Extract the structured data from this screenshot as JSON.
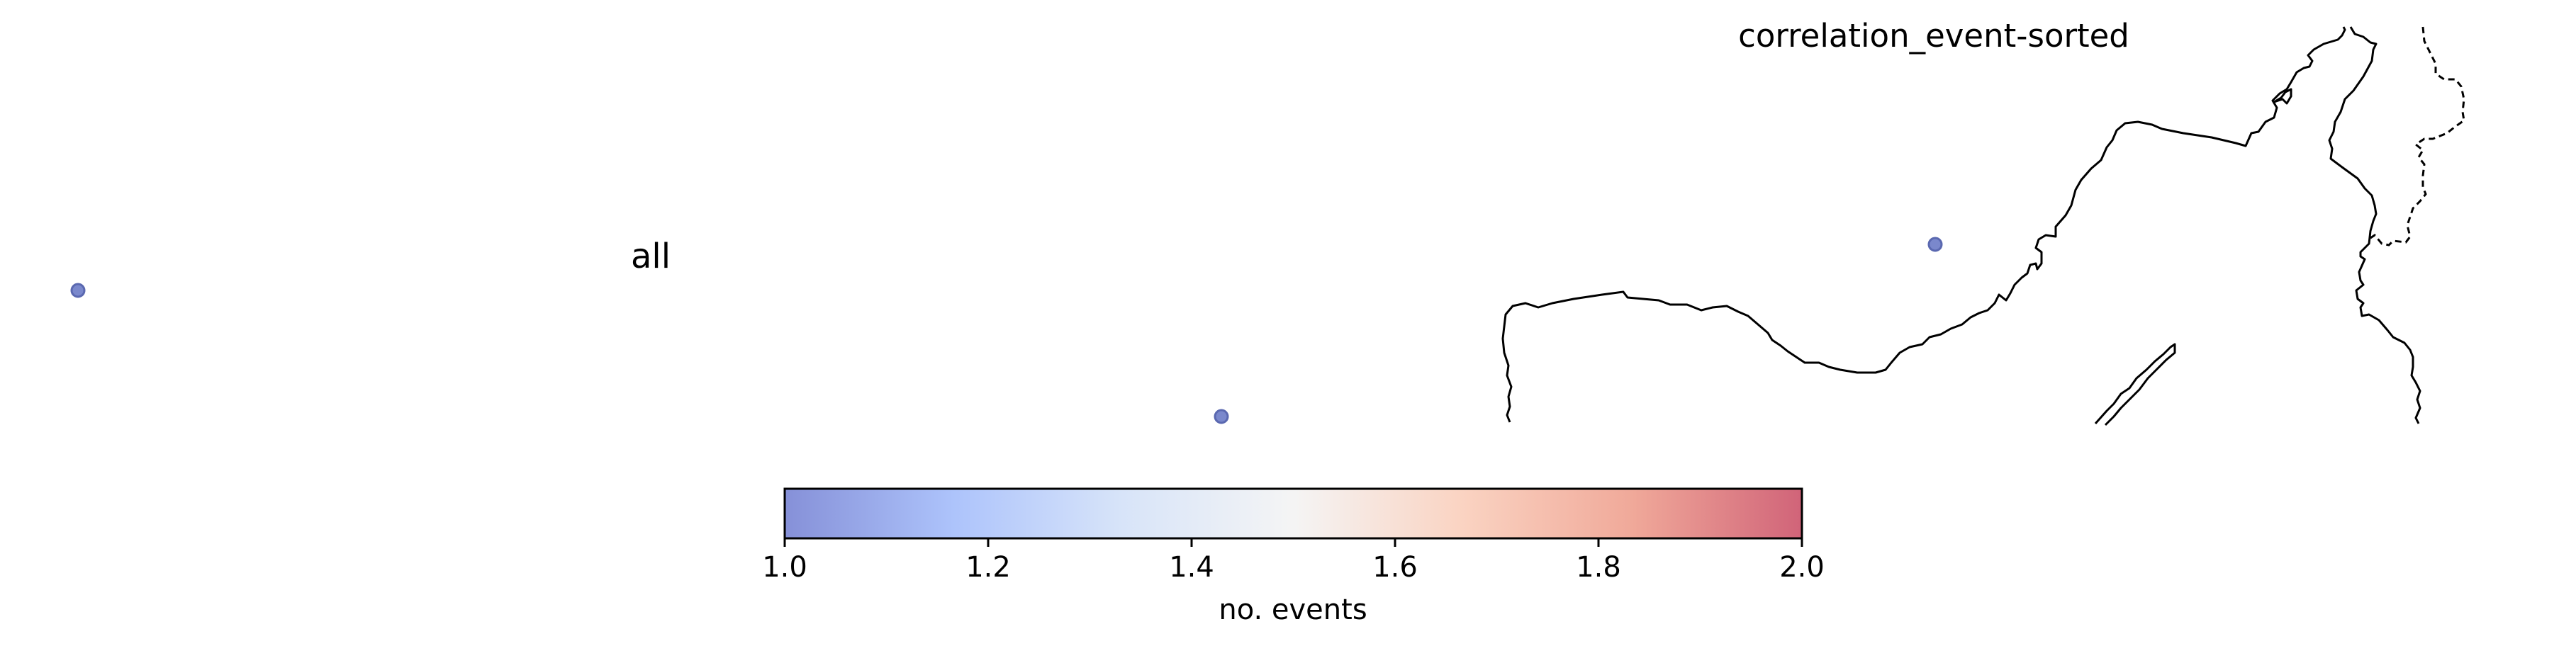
{
  "title": "correlation_event-sorted",
  "panel_label": "all",
  "colorbar": {
    "label": "no. events",
    "min": 1.0,
    "max": 2.0,
    "ticks": [
      "1.0",
      "1.2",
      "1.4",
      "1.6",
      "1.8",
      "2.0"
    ],
    "colormap": "coolwarm",
    "colors": [
      "#3b4cc0",
      "#7b9ff9",
      "#c0d4f5",
      "#eeeeee",
      "#f7b89c",
      "#e7745b",
      "#b40426"
    ]
  },
  "markers": [
    {
      "name": "event-marker",
      "no_events": 1
    },
    {
      "name": "event-marker",
      "no_events": 1
    },
    {
      "name": "event-marker",
      "no_events": 1
    }
  ],
  "colors": {
    "marker_fill": "#7a88cc",
    "marker_edge": "#5a68b0",
    "coastline": "#000000",
    "border": "#000000"
  },
  "map_features": [
    "coastline",
    "international-border"
  ]
}
